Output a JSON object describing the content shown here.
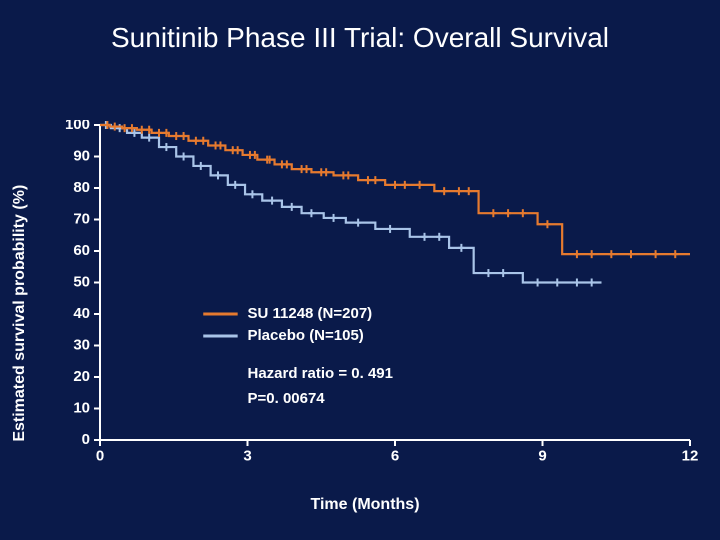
{
  "title": "Sunitinib Phase III Trial: Overall Survival",
  "chart": {
    "type": "line",
    "background_color": "#0a1a4a",
    "axis_color": "#ffffff",
    "text_color": "#ffffff",
    "title_fontsize": 28,
    "label_fontsize": 16,
    "tick_fontsize": 15,
    "line_width": 2.2,
    "xlabel": "Time (Months)",
    "ylabel": "Estimated survival probability (%)",
    "xlim": [
      0,
      12
    ],
    "ylim": [
      0,
      100
    ],
    "xticks": [
      0,
      3,
      6,
      9,
      12
    ],
    "yticks": [
      0,
      10,
      20,
      30,
      40,
      50,
      60,
      70,
      80,
      90,
      100
    ],
    "series": [
      {
        "id": "su11248",
        "label": "SU 11248 (N=207)",
        "color": "#e67a2f",
        "steps": [
          [
            0.0,
            100
          ],
          [
            0.2,
            100
          ],
          [
            0.2,
            99.5
          ],
          [
            0.45,
            99.5
          ],
          [
            0.45,
            99.0
          ],
          [
            0.75,
            99.0
          ],
          [
            0.75,
            98.5
          ],
          [
            1.05,
            98.5
          ],
          [
            1.05,
            97.5
          ],
          [
            1.4,
            97.5
          ],
          [
            1.4,
            96.5
          ],
          [
            1.8,
            96.5
          ],
          [
            1.8,
            95.0
          ],
          [
            2.2,
            95.0
          ],
          [
            2.2,
            93.5
          ],
          [
            2.55,
            93.5
          ],
          [
            2.55,
            92.0
          ],
          [
            2.9,
            92.0
          ],
          [
            2.9,
            90.5
          ],
          [
            3.2,
            90.5
          ],
          [
            3.2,
            89.0
          ],
          [
            3.55,
            89.0
          ],
          [
            3.55,
            87.5
          ],
          [
            3.9,
            87.5
          ],
          [
            3.9,
            86.0
          ],
          [
            4.3,
            86.0
          ],
          [
            4.3,
            85.0
          ],
          [
            4.75,
            85.0
          ],
          [
            4.75,
            84.0
          ],
          [
            5.25,
            84.0
          ],
          [
            5.25,
            82.5
          ],
          [
            5.8,
            82.5
          ],
          [
            5.8,
            81.0
          ],
          [
            6.8,
            81.0
          ],
          [
            6.8,
            79.0
          ],
          [
            7.7,
            79.0
          ],
          [
            7.7,
            72.0
          ],
          [
            8.9,
            72.0
          ],
          [
            8.9,
            68.5
          ],
          [
            9.4,
            68.5
          ],
          [
            9.4,
            59.0
          ],
          [
            12.0,
            59.0
          ]
        ],
        "censor_x": [
          0.15,
          0.3,
          0.5,
          0.65,
          0.85,
          1.0,
          1.2,
          1.35,
          1.55,
          1.7,
          1.95,
          2.1,
          2.35,
          2.45,
          2.7,
          2.8,
          3.05,
          3.15,
          3.4,
          3.45,
          3.7,
          3.8,
          4.1,
          4.2,
          4.5,
          4.6,
          4.95,
          5.05,
          5.45,
          5.6,
          6.0,
          6.2,
          6.5,
          7.0,
          7.3,
          7.5,
          8.0,
          8.3,
          8.6,
          9.1,
          9.7,
          10.0,
          10.4,
          10.8,
          11.3,
          11.7
        ]
      },
      {
        "id": "placebo",
        "label": "Placebo (N=105)",
        "color": "#a9c4e8",
        "steps": [
          [
            0.0,
            100
          ],
          [
            0.22,
            100
          ],
          [
            0.22,
            99.0
          ],
          [
            0.55,
            99.0
          ],
          [
            0.55,
            97.5
          ],
          [
            0.85,
            97.5
          ],
          [
            0.85,
            96.0
          ],
          [
            1.2,
            96.0
          ],
          [
            1.2,
            93.0
          ],
          [
            1.55,
            93.0
          ],
          [
            1.55,
            90.0
          ],
          [
            1.9,
            90.0
          ],
          [
            1.9,
            87.0
          ],
          [
            2.25,
            87.0
          ],
          [
            2.25,
            84.0
          ],
          [
            2.6,
            84.0
          ],
          [
            2.6,
            81.0
          ],
          [
            2.95,
            81.0
          ],
          [
            2.95,
            78.0
          ],
          [
            3.3,
            78.0
          ],
          [
            3.3,
            76.0
          ],
          [
            3.7,
            76.0
          ],
          [
            3.7,
            74.0
          ],
          [
            4.1,
            74.0
          ],
          [
            4.1,
            72.0
          ],
          [
            4.55,
            72.0
          ],
          [
            4.55,
            70.5
          ],
          [
            5.0,
            70.5
          ],
          [
            5.0,
            69.0
          ],
          [
            5.6,
            69.0
          ],
          [
            5.6,
            67.0
          ],
          [
            6.3,
            67.0
          ],
          [
            6.3,
            64.5
          ],
          [
            7.1,
            64.5
          ],
          [
            7.1,
            61.0
          ],
          [
            7.6,
            61.0
          ],
          [
            7.6,
            53.0
          ],
          [
            8.6,
            53.0
          ],
          [
            8.6,
            50.0
          ],
          [
            10.2,
            50.0
          ]
        ],
        "censor_x": [
          0.12,
          0.4,
          0.7,
          1.0,
          1.35,
          1.7,
          2.05,
          2.4,
          2.75,
          3.1,
          3.5,
          3.9,
          4.3,
          4.75,
          5.25,
          5.9,
          6.6,
          6.9,
          7.35,
          7.9,
          8.2,
          8.9,
          9.3,
          9.7,
          10.0
        ]
      }
    ],
    "legend": {
      "x": 3.0,
      "y_line1": 40,
      "y_line2": 33,
      "line_x0": 2.1,
      "line_x1": 2.8
    },
    "stats": {
      "x": 3.0,
      "y_line1": 21,
      "y_line2": 13,
      "line1": "Hazard ratio = 0. 491",
      "line2": "P=0. 00674"
    }
  }
}
